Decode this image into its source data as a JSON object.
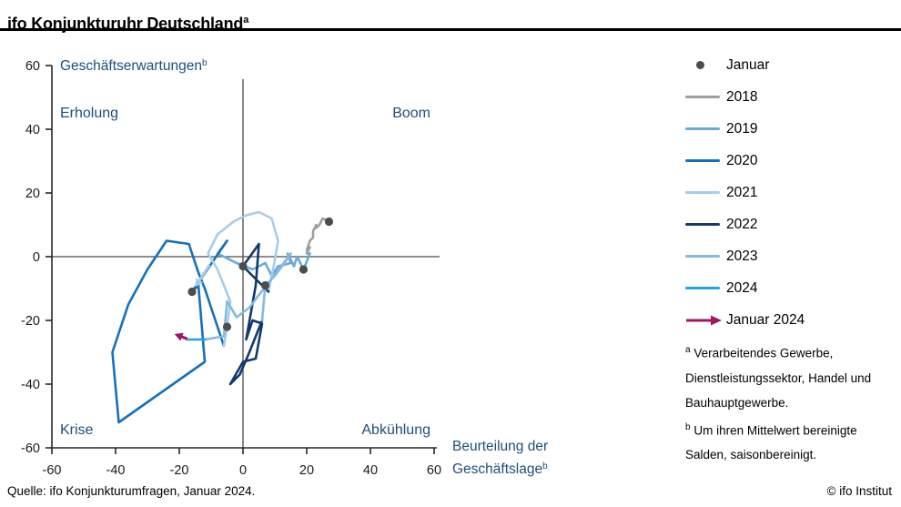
{
  "header": {
    "title": "ifo Konjunkturuhr Deutschland",
    "title_sup": "a"
  },
  "legend": {
    "januar": {
      "label": "Januar",
      "marker": "dot",
      "color": "#4d4d4d"
    },
    "years": [
      {
        "label": "2018",
        "color": "#9e9e9e"
      },
      {
        "label": "2019",
        "color": "#6aaad8"
      },
      {
        "label": "2020",
        "color": "#1a6fb5"
      },
      {
        "label": "2021",
        "color": "#a9cce9"
      },
      {
        "label": "2022",
        "color": "#16386c"
      },
      {
        "label": "2023",
        "color": "#85b9de"
      },
      {
        "label": "2024",
        "color": "#2ba0dc"
      }
    ],
    "januar_2024": {
      "label": "Januar 2024",
      "marker": "arrow",
      "color": "#9b1a63"
    }
  },
  "footnotes": {
    "a_sup": "a",
    "a_text": "Verarbeitendes Gewerbe, Dienstleistungssektor, Handel und Bauhauptgewerbe.",
    "b_sup": "b",
    "b_text": "Um ihren Mittelwert bereinigte Salden, saisonbereinigt."
  },
  "footer": {
    "source": "Quelle: ifo Konjunkturumfragen, Januar 2024.",
    "copyright": "© ifo Institut"
  },
  "chart_data": {
    "type": "line",
    "subtype": "business-cycle-clock scatter trace",
    "title": "ifo Konjunkturuhr Deutschland",
    "ylabel": "Geschäftserwartungen",
    "ylabel_sup": "b",
    "xlabel_lines": [
      "Beurteilung der",
      "Geschäftslage"
    ],
    "xlabel_sup": "b",
    "xlim": [
      -60,
      60
    ],
    "ylim": [
      -60,
      60
    ],
    "xticks": [
      -60,
      -40,
      -20,
      0,
      20,
      40,
      60
    ],
    "yticks": [
      60,
      40,
      20,
      0,
      -20,
      -40,
      -60
    ],
    "grid": false,
    "zero_lines": true,
    "legend_position": "right",
    "quadrants": {
      "top_left": "Erholung",
      "top_right": "Boom",
      "bottom_left": "Krise",
      "bottom_right": "Abkühlung"
    },
    "quadrant_color": "#1f4e79",
    "axis_label_color": "#1f4e79",
    "january_dot_color": "#4d4d4d",
    "series": [
      {
        "name": "2018",
        "color": "#9e9e9e",
        "points": [
          [
            27,
            11
          ],
          [
            25,
            12
          ],
          [
            24,
            10
          ],
          [
            23,
            9
          ],
          [
            23,
            10
          ],
          [
            22,
            8
          ],
          [
            22,
            6
          ],
          [
            21,
            5
          ],
          [
            20,
            2
          ],
          [
            21,
            3
          ],
          [
            20,
            1
          ],
          [
            21,
            1
          ]
        ]
      },
      {
        "name": "2019",
        "color": "#6aaad8",
        "points": [
          [
            19,
            -4
          ],
          [
            17,
            0
          ],
          [
            16,
            -3
          ],
          [
            14,
            1
          ],
          [
            15,
            -2
          ],
          [
            11,
            -3
          ],
          [
            9,
            -6
          ],
          [
            7,
            -2
          ],
          [
            3,
            -4
          ],
          [
            -2,
            -2
          ],
          [
            -8,
            1
          ],
          [
            -5,
            5
          ]
        ]
      },
      {
        "name": "2020",
        "color": "#1a6fb5",
        "points": [
          [
            -16,
            -11
          ],
          [
            -14,
            -9
          ],
          [
            -12,
            -33
          ],
          [
            -39,
            -52
          ],
          [
            -41,
            -30
          ],
          [
            -36,
            -15
          ],
          [
            -30,
            -4
          ],
          [
            -24,
            5
          ],
          [
            -17,
            4
          ],
          [
            -14,
            -5
          ],
          [
            -12,
            -10
          ],
          [
            -6,
            -28
          ]
        ]
      },
      {
        "name": "2021",
        "color": "#a9cce9",
        "points": [
          [
            -5,
            -22
          ],
          [
            -4,
            -14
          ],
          [
            -8,
            -4
          ],
          [
            -11,
            1
          ],
          [
            -8,
            7
          ],
          [
            -3,
            11
          ],
          [
            1,
            13
          ],
          [
            5,
            14
          ],
          [
            9,
            12
          ],
          [
            11,
            5
          ],
          [
            10,
            -1
          ],
          [
            8,
            -11
          ]
        ]
      },
      {
        "name": "2022",
        "color": "#16386c",
        "points": [
          [
            0,
            -3
          ],
          [
            5,
            4
          ],
          [
            4,
            -9
          ],
          [
            1,
            -26
          ],
          [
            3,
            -20
          ],
          [
            6,
            -21
          ],
          [
            4,
            -32
          ],
          [
            0,
            -33
          ],
          [
            -4,
            -40
          ],
          [
            -1,
            -37
          ],
          [
            2,
            -30
          ],
          [
            6,
            -20
          ]
        ]
      },
      {
        "name": "2023",
        "color": "#85b9de",
        "points": [
          [
            7,
            -9
          ],
          [
            10,
            -6
          ],
          [
            13,
            -2
          ],
          [
            15,
            1
          ],
          [
            12,
            -3
          ],
          [
            9,
            -7
          ],
          [
            5,
            -12
          ],
          [
            2,
            -16
          ],
          [
            -2,
            -19
          ],
          [
            -5,
            -14
          ],
          [
            -6,
            -25
          ],
          [
            -12,
            -26
          ]
        ]
      },
      {
        "name": "2024",
        "color": "#2ba0dc",
        "points": [
          [
            -17.5,
            -26
          ]
        ]
      }
    ],
    "connect_years": true,
    "january_points": [
      {
        "year": "2018",
        "x": 27,
        "y": 11
      },
      {
        "year": "2019",
        "x": 19,
        "y": -4
      },
      {
        "year": "2020",
        "x": -16,
        "y": -11
      },
      {
        "year": "2021",
        "x": -5,
        "y": -22
      },
      {
        "year": "2022",
        "x": 0,
        "y": -3
      },
      {
        "year": "2023",
        "x": 7,
        "y": -9
      }
    ],
    "arrows": [
      {
        "name": "year-transition-arrow",
        "color": "#a9cce9",
        "width": 3,
        "from": [
          -10.5,
          -2.5
        ],
        "to": [
          -15,
          -9.5
        ]
      },
      {
        "name": "januar-2024-arrow",
        "color": "#9b1a63",
        "width": 3.2,
        "from": [
          -17.5,
          -25.8
        ],
        "to": [
          -21.5,
          -24.3
        ]
      }
    ]
  }
}
